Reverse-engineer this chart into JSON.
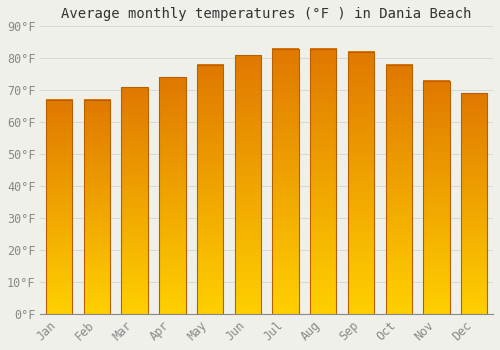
{
  "title": "Average monthly temperatures (°F ) in Dania Beach",
  "months": [
    "Jan",
    "Feb",
    "Mar",
    "Apr",
    "May",
    "Jun",
    "Jul",
    "Aug",
    "Sep",
    "Oct",
    "Nov",
    "Dec"
  ],
  "values": [
    67,
    67,
    71,
    74,
    78,
    81,
    83,
    83,
    82,
    78,
    73,
    69
  ],
  "bar_color_bottom": "#FFD000",
  "bar_color_top": "#E07800",
  "bar_edge_color": "#B86000",
  "background_color": "#f0f0eb",
  "ylim": [
    0,
    90
  ],
  "yticks": [
    0,
    10,
    20,
    30,
    40,
    50,
    60,
    70,
    80,
    90
  ],
  "ytick_labels": [
    "0°F",
    "10°F",
    "20°F",
    "30°F",
    "40°F",
    "50°F",
    "60°F",
    "70°F",
    "80°F",
    "90°F"
  ],
  "title_fontsize": 10,
  "tick_fontsize": 8.5,
  "grid_color": "#d8d8d8",
  "bar_width": 0.7
}
